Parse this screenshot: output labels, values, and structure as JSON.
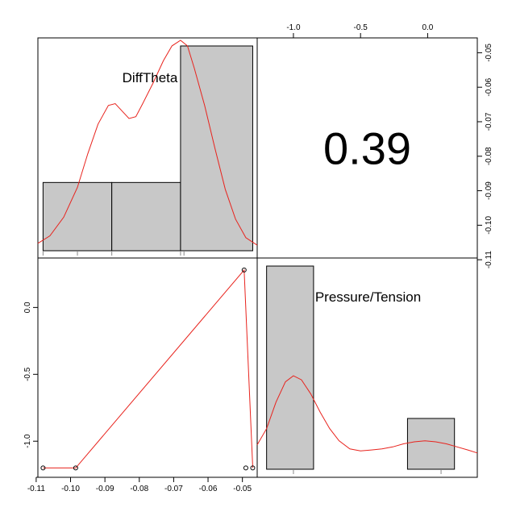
{
  "chart_data": {
    "type": "pairs",
    "variables": [
      "DiffTheta",
      "Pressure/Tension"
    ],
    "correlation": {
      "label": "0.39",
      "value": 0.39
    },
    "axes": {
      "x_bottom": {
        "ticks": [
          -0.11,
          -0.1,
          -0.09,
          -0.08,
          -0.07,
          -0.06,
          -0.05
        ],
        "tick_labels": [
          "-0.11",
          "-0.10",
          "-0.09",
          "-0.08",
          "-0.07",
          "-0.06",
          "-0.05"
        ],
        "range": [
          -0.1095,
          -0.0457
        ]
      },
      "x_top": {
        "ticks": [
          -1.0,
          -0.5,
          0.0
        ],
        "tick_labels": [
          "-1.0",
          "-0.5",
          "0.0"
        ],
        "range": [
          -1.27,
          0.37
        ]
      },
      "y_left": {
        "ticks": [
          0.0,
          -0.5,
          -1.0
        ],
        "tick_labels": [
          "0.0",
          "-0.5",
          "-1.0"
        ],
        "range": [
          -1.27,
          0.37
        ]
      },
      "y_right": {
        "ticks": [
          -0.05,
          -0.06,
          -0.07,
          -0.08,
          -0.09,
          -0.1,
          -0.11
        ],
        "tick_labels": [
          "-0.05",
          "-0.06",
          "-0.07",
          "-0.08",
          "-0.09",
          "-0.10",
          "-0.11"
        ],
        "range": [
          -0.1095,
          -0.0457
        ]
      }
    },
    "hist_difftheta": {
      "bins": [
        [
          -0.108,
          -0.088
        ],
        [
          -0.088,
          -0.068
        ],
        [
          -0.068,
          -0.047
        ]
      ],
      "counts": [
        1,
        1,
        3
      ]
    },
    "density_difftheta": [
      [
        -0.1095,
        0.04
      ],
      [
        -0.106,
        0.08
      ],
      [
        -0.102,
        0.18
      ],
      [
        -0.098,
        0.34
      ],
      [
        -0.095,
        0.52
      ],
      [
        -0.092,
        0.68
      ],
      [
        -0.089,
        0.78
      ],
      [
        -0.087,
        0.79
      ],
      [
        -0.085,
        0.75
      ],
      [
        -0.083,
        0.71
      ],
      [
        -0.081,
        0.72
      ],
      [
        -0.079,
        0.79
      ],
      [
        -0.076,
        0.9
      ],
      [
        -0.073,
        1.02
      ],
      [
        -0.0705,
        1.1
      ],
      [
        -0.068,
        1.13
      ],
      [
        -0.066,
        1.1
      ],
      [
        -0.064,
        0.98
      ],
      [
        -0.061,
        0.78
      ],
      [
        -0.058,
        0.55
      ],
      [
        -0.055,
        0.33
      ],
      [
        -0.052,
        0.17
      ],
      [
        -0.049,
        0.07
      ],
      [
        -0.0457,
        0.03
      ]
    ],
    "rug_difftheta": [
      -0.108,
      -0.098,
      -0.088,
      -0.068,
      -0.067
    ],
    "hist_pressure": {
      "bins": [
        [
          -1.2,
          -0.85
        ],
        [
          -0.85,
          -0.5
        ],
        [
          -0.5,
          -0.15
        ],
        [
          -0.15,
          0.2
        ]
      ],
      "counts": [
        4,
        0,
        0,
        1
      ]
    },
    "density_pressure": [
      [
        -1.27,
        0.12
      ],
      [
        -1.2,
        0.2
      ],
      [
        -1.13,
        0.33
      ],
      [
        -1.06,
        0.43
      ],
      [
        -1.0,
        0.46
      ],
      [
        -0.94,
        0.44
      ],
      [
        -0.87,
        0.37
      ],
      [
        -0.8,
        0.28
      ],
      [
        -0.73,
        0.2
      ],
      [
        -0.66,
        0.14
      ],
      [
        -0.58,
        0.1
      ],
      [
        -0.5,
        0.09
      ],
      [
        -0.42,
        0.095
      ],
      [
        -0.34,
        0.1
      ],
      [
        -0.26,
        0.11
      ],
      [
        -0.18,
        0.125
      ],
      [
        -0.1,
        0.135
      ],
      [
        -0.02,
        0.14
      ],
      [
        0.06,
        0.135
      ],
      [
        0.14,
        0.125
      ],
      [
        0.22,
        0.11
      ],
      [
        0.3,
        0.095
      ],
      [
        0.37,
        0.08
      ]
    ],
    "rug_pressure": [
      -1.0,
      0.1
    ],
    "scatter": [
      {
        "x": -0.108,
        "y": -1.2
      },
      {
        "x": -0.0985,
        "y": -1.2
      },
      {
        "x": -0.0495,
        "y": 0.28
      },
      {
        "x": -0.049,
        "y": -1.2
      },
      {
        "x": -0.047,
        "y": -1.2
      }
    ],
    "smooth_line": [
      [
        -0.108,
        -1.2
      ],
      [
        -0.0985,
        -1.2
      ],
      [
        -0.0495,
        0.28
      ],
      [
        -0.047,
        -1.2
      ]
    ],
    "colors": {
      "bar": "#c8c8c8",
      "line": "#e8231d"
    }
  }
}
